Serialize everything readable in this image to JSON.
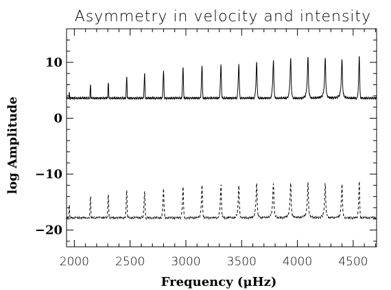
{
  "chart_data": {
    "type": "line",
    "title": "Asymmetry in velocity and intensity",
    "xlabel": "Frequency (μHz)",
    "ylabel": "log Amplitude",
    "xlim": [
      1930,
      4710
    ],
    "ylim": [
      -23,
      16
    ],
    "x_ticks": [
      2000,
      2500,
      3000,
      3500,
      4000,
      4500
    ],
    "x_tick_labels": [
      "2000",
      "2500",
      "3000",
      "3500",
      "4000",
      "4500"
    ],
    "y_ticks": [
      -20,
      -10,
      0,
      10
    ],
    "y_tick_labels": [
      "−20",
      "−10",
      "0",
      "10"
    ],
    "grid": false,
    "legend": false,
    "series": [
      {
        "style": "solid",
        "peak_x": [
          1955,
          2145,
          2305,
          2470,
          2630,
          2800,
          2975,
          3145,
          3315,
          3475,
          3635,
          3785,
          3940,
          4095,
          4250,
          4400,
          4555
        ],
        "peak_y": [
          4.6,
          6.0,
          6.5,
          7.5,
          8.0,
          8.5,
          9.0,
          9.3,
          9.5,
          9.7,
          10.0,
          10.3,
          10.7,
          11.0,
          10.8,
          10.5,
          11.0
        ],
        "baseline_x": [
          1930,
          1975,
          2050,
          2200,
          2400,
          2600,
          2800,
          3000,
          3200,
          3400,
          3600,
          3800,
          4000,
          4200,
          4400,
          4600,
          4710
        ],
        "baseline_y": [
          2.0,
          -0.8,
          0.0,
          0.3,
          0.8,
          1.3,
          1.8,
          2.1,
          2.3,
          2.6,
          2.9,
          3.2,
          3.4,
          3.6,
          3.6,
          2.2,
          1.5
        ]
      },
      {
        "style": "dashed",
        "peak_x": [
          1955,
          2145,
          2305,
          2470,
          2630,
          2800,
          2975,
          3145,
          3315,
          3475,
          3635,
          3785,
          3940,
          4095,
          4250,
          4400,
          4555
        ],
        "peak_y": [
          -15.5,
          -14.0,
          -13.5,
          -13.0,
          -13.0,
          -12.5,
          -12.3,
          -12.0,
          -12.0,
          -12.0,
          -11.5,
          -11.5,
          -11.5,
          -11.5,
          -11.8,
          -11.8,
          -11.5
        ],
        "baseline_x": [
          1930,
          1975,
          2050,
          2200,
          2400,
          2600,
          2800,
          3000,
          3200,
          3400,
          3600,
          3800,
          4000,
          4200,
          4400,
          4600,
          4710
        ],
        "baseline_y": [
          -19.0,
          -20.5,
          -20.0,
          -19.5,
          -19.0,
          -18.8,
          -18.5,
          -18.3,
          -18.2,
          -18.0,
          -17.9,
          -17.8,
          -17.8,
          -17.8,
          -17.9,
          -18.8,
          -19.8
        ]
      }
    ]
  }
}
